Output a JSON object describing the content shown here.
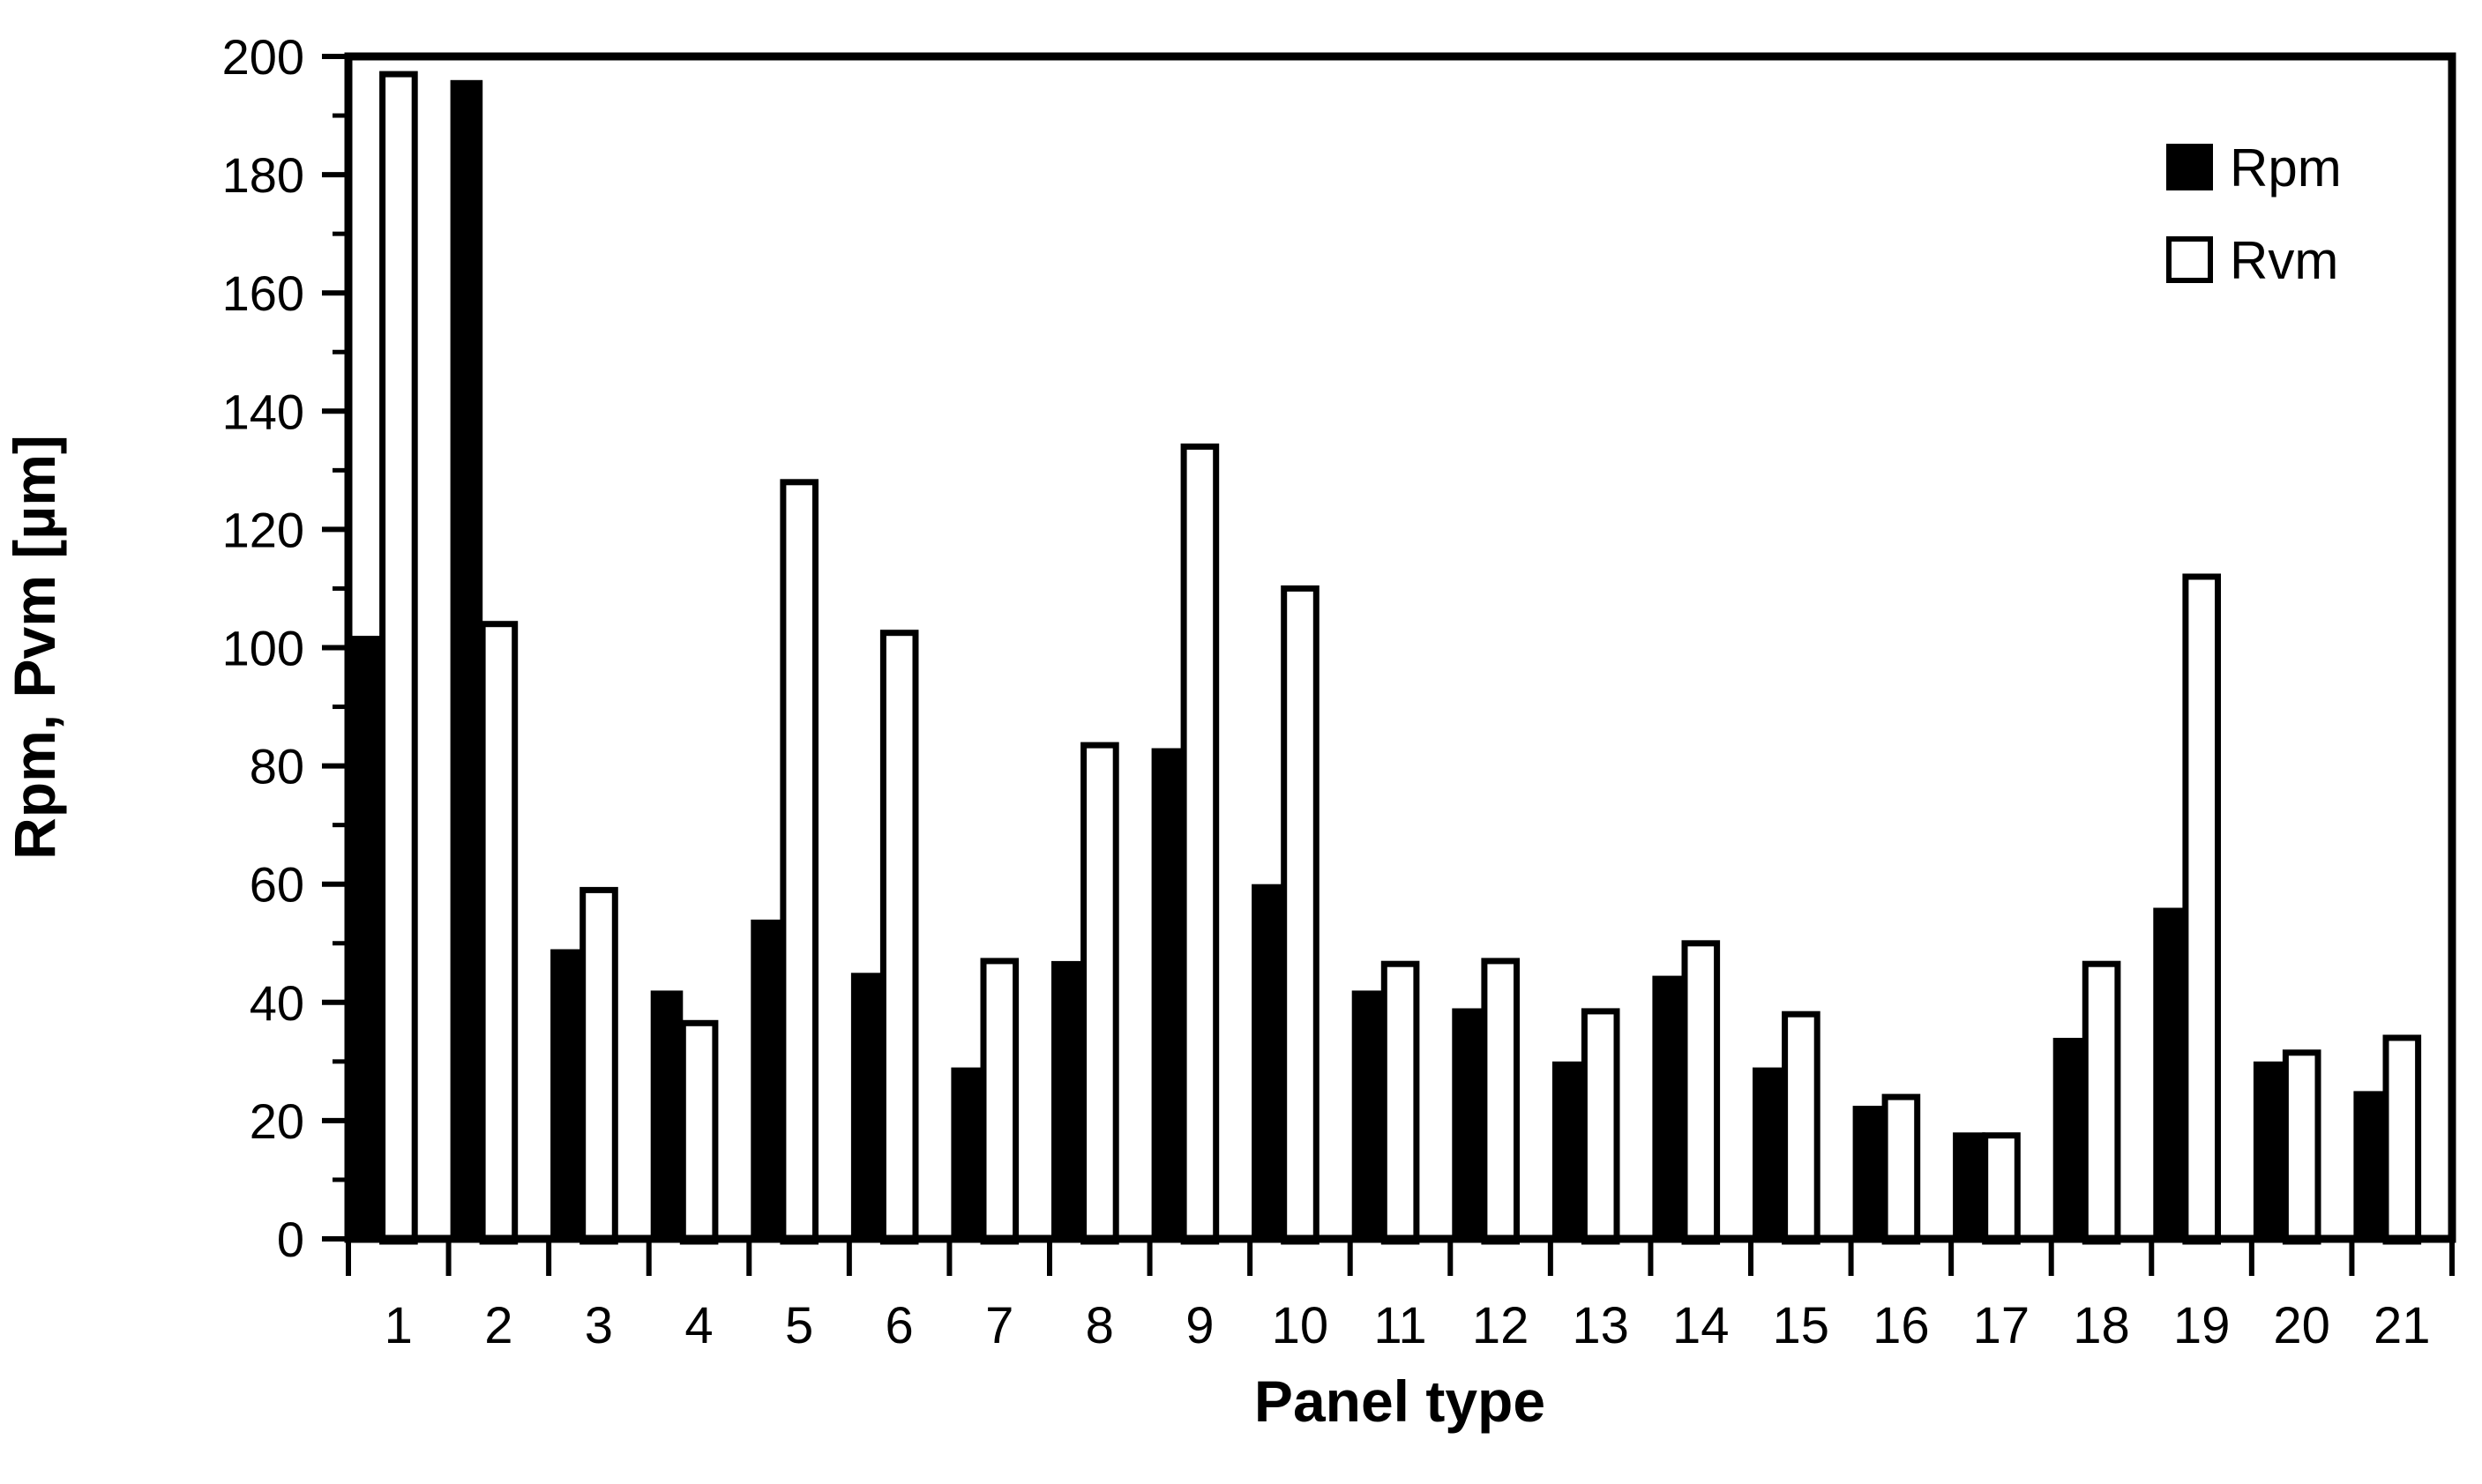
{
  "chart_data": {
    "type": "bar",
    "title": "",
    "xlabel": "Panel type",
    "ylabel": "Rpm, Pvm [µm]",
    "categories": [
      "1",
      "2",
      "3",
      "4",
      "5",
      "6",
      "7",
      "8",
      "9",
      "10",
      "11",
      "12",
      "13",
      "14",
      "15",
      "16",
      "17",
      "18",
      "19",
      "20",
      "21"
    ],
    "series": [
      {
        "name": "Rpm",
        "color": "#000000",
        "values": [
          102,
          196,
          49,
          42,
          54,
          45,
          29,
          47,
          83,
          60,
          42,
          39,
          30,
          44.5,
          29,
          22.5,
          18,
          34,
          56,
          30,
          25
        ]
      },
      {
        "name": "Rvm",
        "color": "#ffffff",
        "values": [
          197,
          104,
          59,
          36.5,
          128,
          102.5,
          47,
          83.5,
          134,
          110,
          46.5,
          47,
          38.5,
          50,
          38,
          24,
          17.5,
          46.5,
          112,
          31.5,
          34
        ]
      }
    ],
    "ylim": [
      0,
      200
    ],
    "ytick_step": 20,
    "ytick_minor_step": 10,
    "ytick_labels": [
      "0",
      "20",
      "40",
      "60",
      "80",
      "100",
      "120",
      "140",
      "160",
      "180",
      "200"
    ],
    "grid": false,
    "legend_position": "upper-right-inside",
    "bar_outline_color": "#000000",
    "background": "#ffffff"
  },
  "legend": {
    "items": [
      {
        "label": "Rpm",
        "color": "#000000"
      },
      {
        "label": "Rvm",
        "color": "#ffffff"
      }
    ]
  }
}
